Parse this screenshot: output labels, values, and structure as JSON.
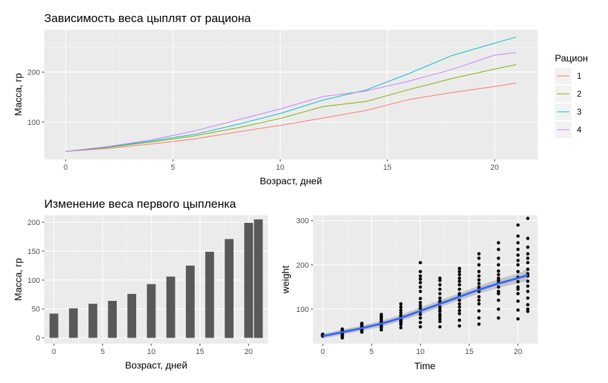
{
  "chart_data": [
    {
      "type": "line",
      "title": "Зависимость веса цыплят от рациона",
      "xlabel": "Возраст, дней",
      "ylabel": "Масса, гр",
      "xlim": [
        -1,
        22
      ],
      "ylim": [
        25,
        285
      ],
      "xticks": [
        0,
        5,
        10,
        15,
        20
      ],
      "yticks": [
        100,
        200
      ],
      "grid": true,
      "legend": {
        "title": "Рацион",
        "position": "right"
      },
      "x": [
        0,
        2,
        4,
        6,
        8,
        10,
        12,
        14,
        16,
        18,
        20,
        21
      ],
      "series": [
        {
          "name": "1",
          "color": "#F8766D",
          "values": [
            41,
            47,
            56,
            66,
            80,
            93,
            108,
            123,
            145,
            159,
            171,
            178
          ]
        },
        {
          "name": "2",
          "color": "#7CAE00",
          "values": [
            41,
            49,
            60,
            72,
            88,
            107,
            131,
            141,
            165,
            187,
            206,
            215
          ]
        },
        {
          "name": "3",
          "color": "#00BFC4",
          "values": [
            41,
            50,
            62,
            75,
            95,
            117,
            144,
            164,
            197,
            233,
            258,
            270
          ]
        },
        {
          "name": "4",
          "color": "#C77CFF",
          "values": [
            41,
            51,
            64,
            82,
            104,
            126,
            151,
            162,
            182,
            205,
            234,
            239
          ]
        }
      ]
    },
    {
      "type": "bar",
      "title": "Изменение веса первого цыпленка",
      "xlabel": "Возраст, дней",
      "ylabel": "Масса, гр",
      "xlim": [
        -1,
        22
      ],
      "ylim": [
        -10,
        212
      ],
      "xticks": [
        0,
        5,
        10,
        15,
        20
      ],
      "yticks": [
        0,
        50,
        100,
        150,
        200
      ],
      "grid": true,
      "bar_color": "#595959",
      "x": [
        0,
        2,
        4,
        6,
        8,
        10,
        12,
        14,
        16,
        18,
        20,
        21
      ],
      "values": [
        42,
        51,
        59,
        64,
        76,
        93,
        106,
        125,
        149,
        171,
        199,
        205
      ]
    },
    {
      "type": "scatter",
      "title": "",
      "xlabel": "Time",
      "ylabel": "weight",
      "xlim": [
        -1,
        22
      ],
      "ylim": [
        22,
        312
      ],
      "xticks": [
        0,
        5,
        10,
        15,
        20
      ],
      "yticks": [
        100,
        200,
        300
      ],
      "grid": true,
      "point_color": "#000000",
      "smooth_color": "#3366FF",
      "band_color": "#BEBEBE",
      "points": [
        {
          "x": 0,
          "values": [
            39,
            40,
            41,
            42,
            43,
            41,
            42,
            39,
            41,
            40,
            42,
            43
          ]
        },
        {
          "x": 2,
          "values": [
            35,
            38,
            42,
            45,
            48,
            51,
            53,
            55,
            50,
            47,
            44,
            40
          ]
        },
        {
          "x": 4,
          "values": [
            48,
            50,
            53,
            56,
            59,
            62,
            64,
            66,
            68,
            55,
            58,
            52
          ]
        },
        {
          "x": 6,
          "values": [
            53,
            58,
            63,
            68,
            72,
            76,
            80,
            84,
            88,
            70,
            66,
            61
          ]
        },
        {
          "x": 8,
          "values": [
            58,
            65,
            72,
            79,
            86,
            92,
            98,
            105,
            112,
            75,
            82,
            69
          ]
        },
        {
          "x": 10,
          "values": [
            60,
            70,
            80,
            88,
            95,
            102,
            108,
            115,
            124,
            140,
            150,
            160,
            168,
            175,
            185,
            205
          ]
        },
        {
          "x": 12,
          "values": [
            60,
            72,
            84,
            95,
            105,
            115,
            125,
            135,
            145,
            155,
            165,
            170,
            118,
            100,
            88,
            78
          ]
        },
        {
          "x": 14,
          "values": [
            62,
            75,
            90,
            105,
            120,
            135,
            145,
            155,
            163,
            170,
            178,
            185,
            192,
            130,
            112,
            97
          ]
        },
        {
          "x": 16,
          "values": [
            66,
            80,
            96,
            112,
            128,
            140,
            150,
            158,
            166,
            175,
            185,
            200,
            215,
            225,
            145,
            120
          ]
        },
        {
          "x": 18,
          "values": [
            80,
            100,
            120,
            135,
            150,
            160,
            170,
            178,
            186,
            200,
            215,
            235,
            250,
            165,
            140
          ]
        },
        {
          "x": 20,
          "values": [
            78,
            98,
            118,
            135,
            150,
            162,
            172,
            185,
            200,
            210,
            222,
            235,
            250,
            265,
            290,
            145
          ]
        },
        {
          "x": 21,
          "values": [
            95,
            110,
            125,
            140,
            152,
            163,
            175,
            190,
            205,
            215,
            225,
            240,
            260,
            305,
            100,
            180
          ]
        }
      ],
      "smooth": {
        "x": [
          0,
          2,
          4,
          6,
          8,
          10,
          12,
          14,
          16,
          18,
          20,
          21
        ],
        "values": [
          39,
          48,
          57,
          67,
          80,
          96,
          112,
          128,
          144,
          158,
          170,
          177
        ],
        "band": [
          5,
          6,
          6,
          7,
          7,
          8,
          8,
          8,
          9,
          10,
          11,
          13
        ]
      }
    }
  ]
}
